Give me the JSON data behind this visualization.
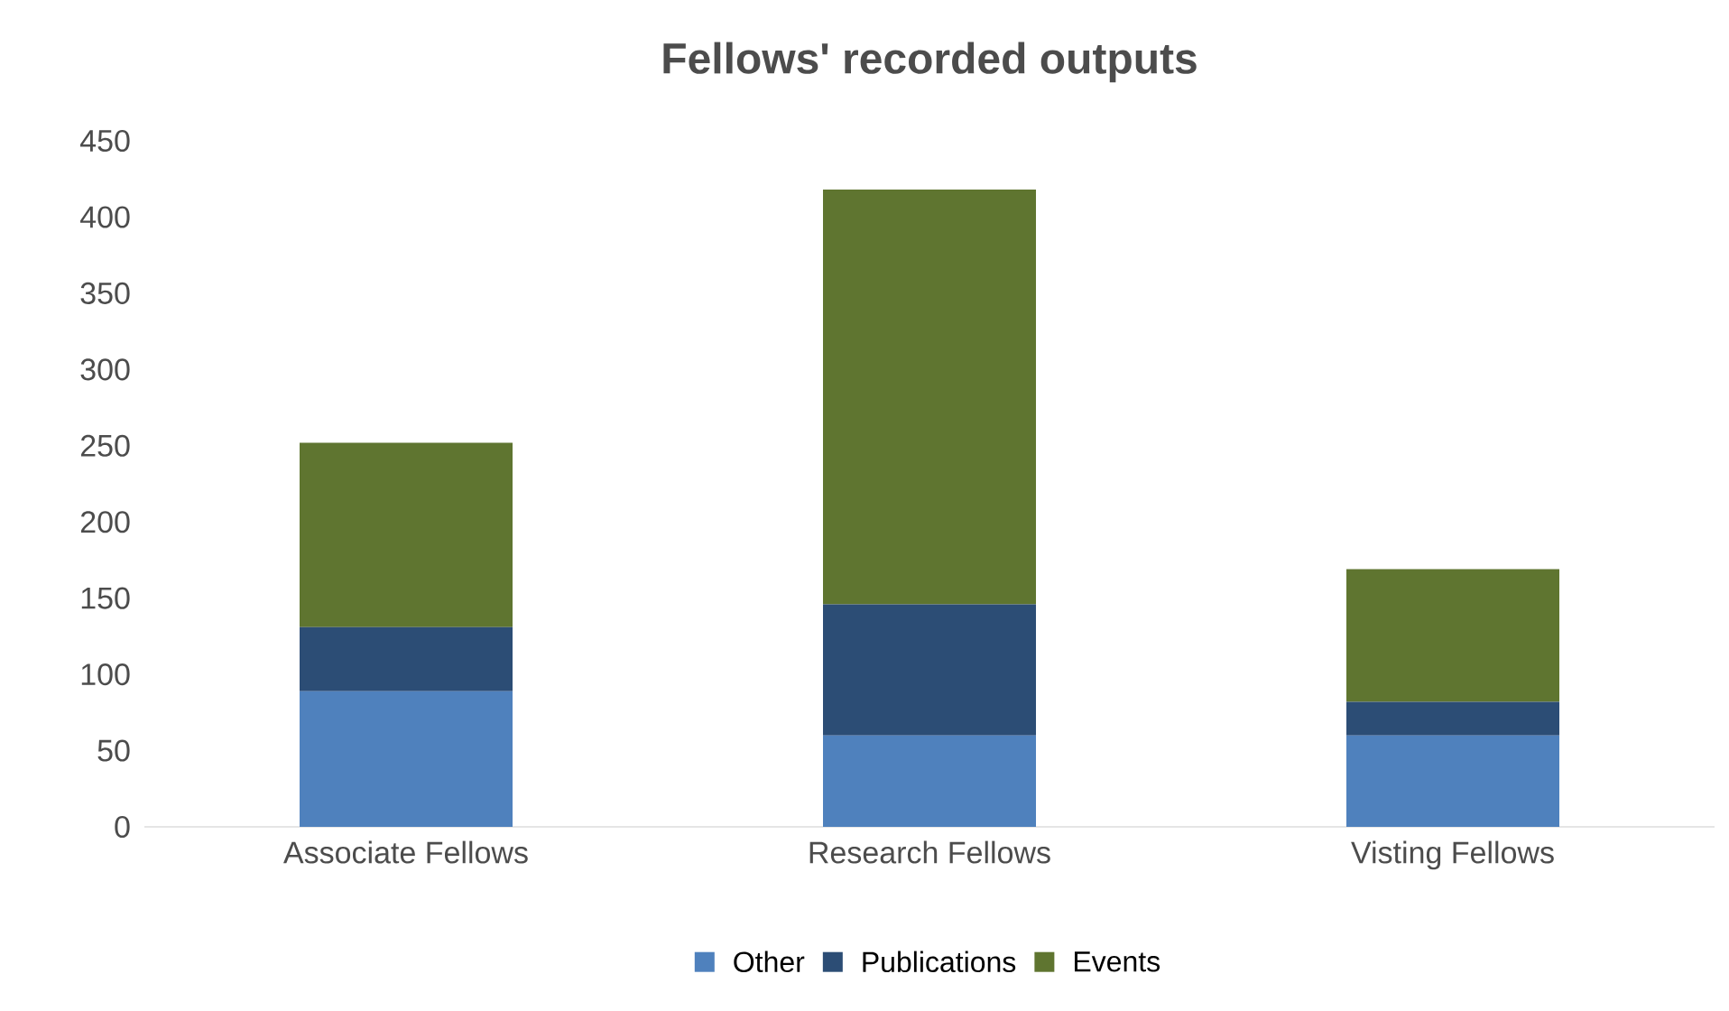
{
  "chart_data": {
    "type": "bar",
    "title": "Fellows' recorded outputs",
    "categories": [
      "Associate Fellows",
      "Research Fellows",
      "Visting Fellows"
    ],
    "stacked": true,
    "ylim": [
      0,
      450
    ],
    "yticks": [
      0,
      50,
      100,
      150,
      200,
      250,
      300,
      350,
      400,
      450
    ],
    "grid": false,
    "legend": "bottom",
    "series": [
      {
        "name": "Other",
        "color": "#4f81bd",
        "values": [
          89,
          60,
          60
        ]
      },
      {
        "name": "Publications",
        "color": "#2c4d75",
        "values": [
          42,
          86,
          22
        ]
      },
      {
        "name": "Events",
        "color": "#5f7530",
        "values": [
          121,
          272,
          87
        ]
      }
    ]
  }
}
